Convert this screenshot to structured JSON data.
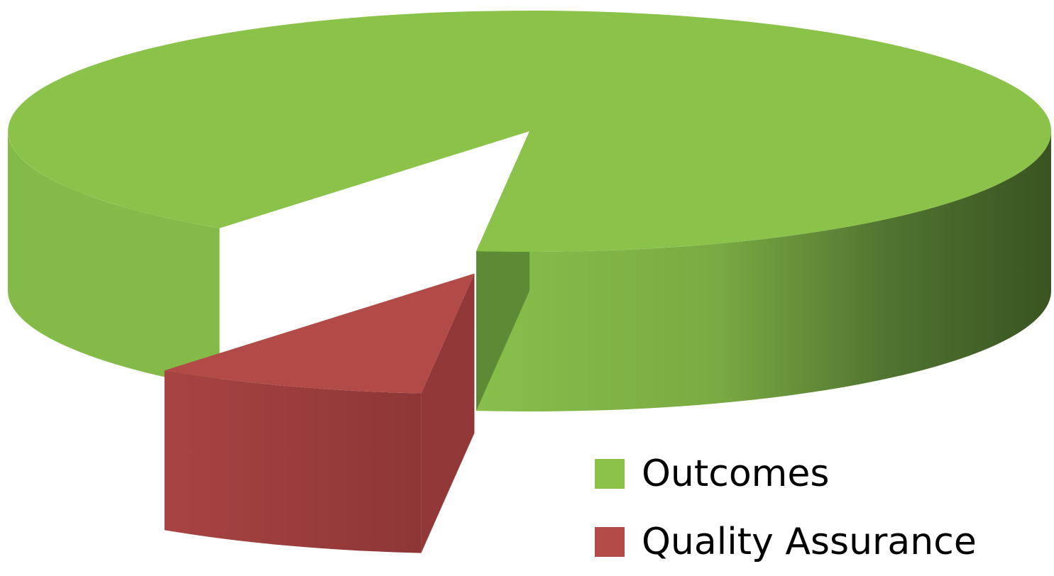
{
  "chart_data": {
    "type": "pie",
    "style": "3d-exploded",
    "title": "",
    "categories": [
      "Outcomes",
      "Quality Assurance"
    ],
    "values": [
      91.5,
      8.5
    ],
    "unit": "percent of total (estimated)",
    "colors": [
      "#8BC34A",
      "#B24A47"
    ],
    "exploded": [
      "Quality Assurance"
    ],
    "legend_position": "bottom-right"
  },
  "legend": {
    "items": [
      {
        "label": "Outcomes",
        "color": "#8BC34A"
      },
      {
        "label": "Quality Assurance",
        "color": "#B24A47"
      }
    ]
  }
}
